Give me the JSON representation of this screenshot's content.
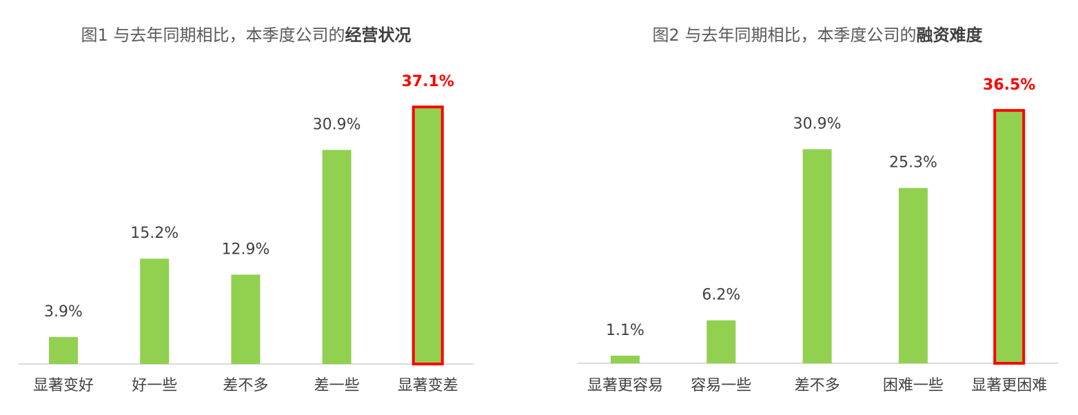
{
  "chart_data": [
    {
      "type": "bar",
      "title": "图1 与去年同期相比，本季度公司的",
      "title_bold": "经营状况",
      "categories": [
        "显著变好",
        "好一些",
        "差不多",
        "差一些",
        "显著变差"
      ],
      "values": [
        3.9,
        15.2,
        12.9,
        30.9,
        37.1
      ],
      "value_labels": [
        "3.9%",
        "15.2%",
        "12.9%",
        "30.9%",
        "37.1%"
      ],
      "color": "#92d050",
      "highlight_index": 4,
      "highlight_color": "#ff0000"
    },
    {
      "type": "bar",
      "title": "图2 与去年同期相比，本季度公司的",
      "title_bold": "融资难度",
      "categories": [
        "显著更容易",
        "容易一些",
        "差不多",
        "困难一些",
        "显著更困难"
      ],
      "values": [
        1.1,
        6.2,
        30.9,
        25.3,
        36.5
      ],
      "value_labels": [
        "1.1%",
        "6.2%",
        "30.9%",
        "25.3%",
        "36.5%"
      ],
      "color": "#92d050",
      "highlight_index": 4,
      "highlight_color": "#ff0000"
    }
  ]
}
